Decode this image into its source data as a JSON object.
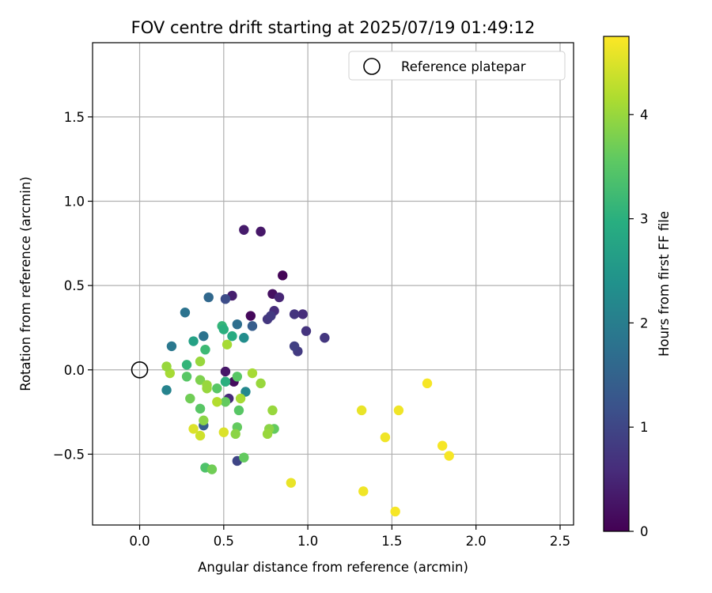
{
  "chart_data": {
    "type": "scatter",
    "title": "FOV centre drift starting at 2025/07/19 01:49:12",
    "xlabel": "Angular distance from reference (arcmin)",
    "ylabel": "Rotation from reference (arcmin)",
    "xlim": [
      -0.28,
      2.58
    ],
    "ylim": [
      -0.92,
      1.94
    ],
    "xticks": [
      0.0,
      0.5,
      1.0,
      1.5,
      2.0,
      2.5
    ],
    "xtick_labels": [
      "0.0",
      "0.5",
      "1.0",
      "1.5",
      "2.0",
      "2.5"
    ],
    "yticks": [
      -0.5,
      0.0,
      0.5,
      1.0,
      1.5
    ],
    "ytick_labels": [
      "−0.5",
      "0.0",
      "0.5",
      "1.0",
      "1.5"
    ],
    "grid": true,
    "legend": {
      "placement": "upper right",
      "entries": [
        "Reference platepar"
      ]
    },
    "reference_point": {
      "x": 0.0,
      "y": 0.0,
      "marker": "open circle",
      "color": "#000000"
    },
    "colorbar": {
      "label": "Hours from first FF file",
      "colormap": "viridis",
      "range": [
        0,
        4.75
      ],
      "ticks": [
        0,
        1,
        2,
        3,
        4
      ],
      "tick_labels": [
        "0",
        "1",
        "2",
        "3",
        "4"
      ]
    },
    "points": [
      {
        "x": 0.85,
        "y": 0.56,
        "hours": 0.05
      },
      {
        "x": 0.66,
        "y": 0.32,
        "hours": 0.1
      },
      {
        "x": 0.79,
        "y": 0.45,
        "hours": 0.2
      },
      {
        "x": 0.72,
        "y": 0.82,
        "hours": 0.3
      },
      {
        "x": 0.62,
        "y": 0.83,
        "hours": 0.35
      },
      {
        "x": 0.55,
        "y": 0.44,
        "hours": 0.4
      },
      {
        "x": 0.83,
        "y": 0.43,
        "hours": 0.5
      },
      {
        "x": 0.56,
        "y": -0.07,
        "hours": 0.15
      },
      {
        "x": 0.51,
        "y": -0.01,
        "hours": 0.3
      },
      {
        "x": 0.53,
        "y": -0.17,
        "hours": 0.55
      },
      {
        "x": 0.8,
        "y": 0.35,
        "hours": 0.6
      },
      {
        "x": 0.97,
        "y": 0.33,
        "hours": 0.6
      },
      {
        "x": 0.92,
        "y": 0.33,
        "hours": 0.7
      },
      {
        "x": 0.76,
        "y": 0.3,
        "hours": 0.75
      },
      {
        "x": 0.78,
        "y": 0.32,
        "hours": 0.8
      },
      {
        "x": 0.99,
        "y": 0.23,
        "hours": 0.7
      },
      {
        "x": 1.1,
        "y": 0.19,
        "hours": 0.75
      },
      {
        "x": 0.94,
        "y": 0.11,
        "hours": 0.8
      },
      {
        "x": 0.92,
        "y": 0.14,
        "hours": 0.9
      },
      {
        "x": 0.58,
        "y": -0.54,
        "hours": 1.0
      },
      {
        "x": 0.51,
        "y": 0.42,
        "hours": 1.1
      },
      {
        "x": 0.67,
        "y": 0.26,
        "hours": 1.4
      },
      {
        "x": 0.41,
        "y": 0.43,
        "hours": 1.6
      },
      {
        "x": 0.38,
        "y": -0.33,
        "hours": 1.4
      },
      {
        "x": 0.58,
        "y": 0.27,
        "hours": 1.7
      },
      {
        "x": 0.38,
        "y": 0.2,
        "hours": 1.8
      },
      {
        "x": 0.27,
        "y": 0.34,
        "hours": 1.8
      },
      {
        "x": 0.19,
        "y": 0.14,
        "hours": 1.9
      },
      {
        "x": 0.16,
        "y": -0.12,
        "hours": 2.1
      },
      {
        "x": 0.63,
        "y": -0.13,
        "hours": 2.2
      },
      {
        "x": 0.62,
        "y": 0.19,
        "hours": 2.3
      },
      {
        "x": 0.32,
        "y": 0.17,
        "hours": 2.7
      },
      {
        "x": 0.55,
        "y": 0.2,
        "hours": 2.9
      },
      {
        "x": 0.49,
        "y": 0.26,
        "hours": 3.1
      },
      {
        "x": 0.5,
        "y": 0.24,
        "hours": 3.0
      },
      {
        "x": 0.28,
        "y": 0.03,
        "hours": 3.1
      },
      {
        "x": 0.39,
        "y": 0.12,
        "hours": 3.2
      },
      {
        "x": 0.51,
        "y": -0.07,
        "hours": 3.0
      },
      {
        "x": 0.28,
        "y": -0.04,
        "hours": 3.5
      },
      {
        "x": 0.39,
        "y": -0.58,
        "hours": 3.4
      },
      {
        "x": 0.36,
        "y": -0.23,
        "hours": 3.5
      },
      {
        "x": 0.46,
        "y": -0.11,
        "hours": 3.5
      },
      {
        "x": 0.3,
        "y": -0.17,
        "hours": 3.7
      },
      {
        "x": 0.43,
        "y": -0.59,
        "hours": 3.7
      },
      {
        "x": 0.51,
        "y": -0.19,
        "hours": 3.6
      },
      {
        "x": 0.58,
        "y": -0.34,
        "hours": 3.6
      },
      {
        "x": 0.59,
        "y": -0.24,
        "hours": 3.5
      },
      {
        "x": 0.8,
        "y": -0.35,
        "hours": 3.6
      },
      {
        "x": 0.58,
        "y": -0.04,
        "hours": 3.5
      },
      {
        "x": 0.62,
        "y": -0.52,
        "hours": 3.6
      },
      {
        "x": 0.38,
        "y": -0.3,
        "hours": 3.9
      },
      {
        "x": 0.36,
        "y": -0.06,
        "hours": 3.8
      },
      {
        "x": 0.36,
        "y": 0.05,
        "hours": 4.0
      },
      {
        "x": 0.4,
        "y": -0.09,
        "hours": 4.0
      },
      {
        "x": 0.18,
        "y": -0.02,
        "hours": 4.1
      },
      {
        "x": 0.16,
        "y": 0.02,
        "hours": 4.0
      },
      {
        "x": 0.4,
        "y": -0.11,
        "hours": 4.0
      },
      {
        "x": 0.57,
        "y": -0.38,
        "hours": 3.9
      },
      {
        "x": 0.77,
        "y": -0.35,
        "hours": 3.9
      },
      {
        "x": 0.76,
        "y": -0.38,
        "hours": 4.0
      },
      {
        "x": 0.79,
        "y": -0.24,
        "hours": 4.0
      },
      {
        "x": 0.72,
        "y": -0.08,
        "hours": 4.0
      },
      {
        "x": 0.67,
        "y": -0.02,
        "hours": 4.1
      },
      {
        "x": 0.6,
        "y": -0.17,
        "hours": 4.1
      },
      {
        "x": 0.52,
        "y": 0.15,
        "hours": 4.1
      },
      {
        "x": 0.46,
        "y": -0.19,
        "hours": 4.2
      },
      {
        "x": 0.5,
        "y": -0.37,
        "hours": 4.5
      },
      {
        "x": 0.32,
        "y": -0.35,
        "hours": 4.5
      },
      {
        "x": 0.36,
        "y": -0.39,
        "hours": 4.4
      },
      {
        "x": 0.9,
        "y": -0.67,
        "hours": 4.6
      },
      {
        "x": 1.32,
        "y": -0.24,
        "hours": 4.6
      },
      {
        "x": 1.46,
        "y": -0.4,
        "hours": 4.65
      },
      {
        "x": 1.33,
        "y": -0.72,
        "hours": 4.65
      },
      {
        "x": 1.52,
        "y": -0.84,
        "hours": 4.7
      },
      {
        "x": 1.54,
        "y": -0.24,
        "hours": 4.65
      },
      {
        "x": 1.71,
        "y": -0.08,
        "hours": 4.7
      },
      {
        "x": 1.8,
        "y": -0.45,
        "hours": 4.7
      },
      {
        "x": 1.84,
        "y": -0.51,
        "hours": 4.7
      }
    ]
  }
}
